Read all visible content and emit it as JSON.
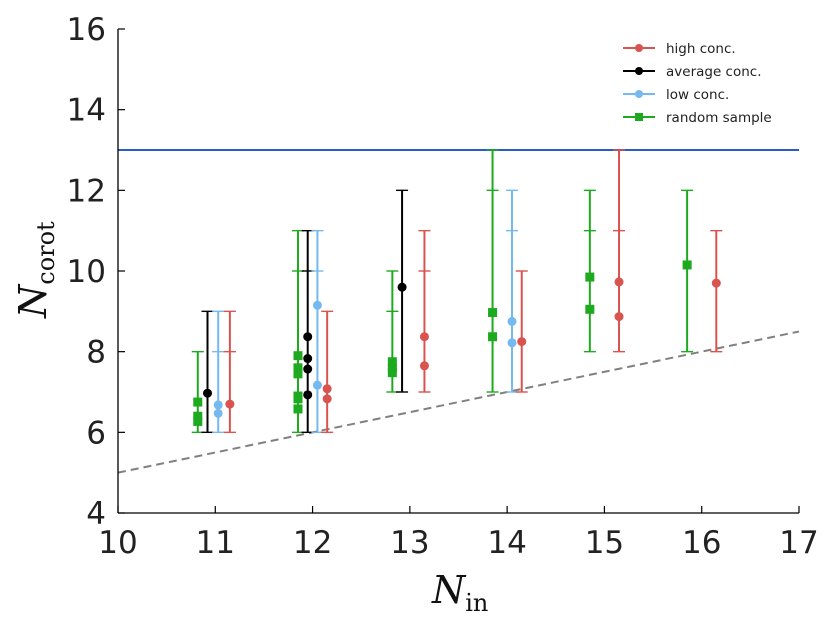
{
  "chart_data": {
    "type": "scatter",
    "title": "",
    "xlabel": {
      "main": "N",
      "sub": "in"
    },
    "ylabel": {
      "main": "N",
      "sub": "corot"
    },
    "xlim": [
      10,
      17
    ],
    "ylim": [
      4,
      16
    ],
    "xticks": [
      "10",
      "11",
      "12",
      "13",
      "14",
      "15",
      "16",
      "17"
    ],
    "yticks": [
      "4",
      "6",
      "8",
      "10",
      "12",
      "14",
      "16"
    ],
    "grid": false,
    "legend_position": "top-right",
    "colors": {
      "high": "#d9534f",
      "average": "#000000",
      "low": "#74b9f0",
      "random": "#1eaa1e",
      "hline": "#2a5cc8",
      "dashed": "#808080"
    },
    "reference_lines": [
      {
        "name": "upper-bound",
        "y": 13,
        "style": "solid",
        "color": "#2a5cc8"
      },
      {
        "name": "lower-bound",
        "x": [
          10,
          17
        ],
        "y": [
          5,
          8.5
        ],
        "style": "dashed",
        "color": "#808080"
      }
    ],
    "series": [
      {
        "name": "high conc.",
        "key": "high",
        "marker": "circle",
        "groups": [
          {
            "x": 11.15,
            "y_min": 6,
            "y_max": 9,
            "caps": [
              9,
              8,
              6
            ],
            "points": [
              6.7
            ]
          },
          {
            "x": 12.15,
            "y_min": 6,
            "y_max": 9,
            "caps": [
              9,
              6
            ],
            "points": [
              7.08,
              6.83
            ]
          },
          {
            "x": 13.15,
            "y_min": 7,
            "y_max": 11,
            "caps": [
              11,
              10,
              7
            ],
            "points": [
              8.37,
              7.65
            ]
          },
          {
            "x": 14.15,
            "y_min": 7,
            "y_max": 10,
            "caps": [
              10,
              7
            ],
            "points": [
              8.25
            ]
          },
          {
            "x": 15.15,
            "y_min": 8,
            "y_max": 13,
            "caps": [
              13,
              11,
              8
            ],
            "points": [
              9.73,
              8.87
            ]
          },
          {
            "x": 16.15,
            "y_min": 8,
            "y_max": 11,
            "caps": [
              11,
              8
            ],
            "points": [
              9.7
            ]
          }
        ]
      },
      {
        "name": "average conc.",
        "key": "average",
        "marker": "circle",
        "groups": [
          {
            "x": 10.92,
            "y_min": 6,
            "y_max": 9,
            "caps": [
              9,
              6
            ],
            "points": [
              6.97
            ]
          },
          {
            "x": 11.95,
            "y_min": 6,
            "y_max": 11,
            "caps": [
              11,
              10,
              6
            ],
            "points": [
              8.37,
              7.83,
              7.57,
              6.93
            ]
          },
          {
            "x": 12.92,
            "y_min": 7,
            "y_max": 12,
            "caps": [
              12,
              7
            ],
            "points": [
              9.6
            ]
          }
        ]
      },
      {
        "name": "low conc.",
        "key": "low",
        "marker": "circle",
        "groups": [
          {
            "x": 11.03,
            "y_min": 6,
            "y_max": 9,
            "caps": [
              9,
              8,
              6
            ],
            "points": [
              6.68,
              6.47
            ]
          },
          {
            "x": 12.05,
            "y_min": 6,
            "y_max": 11,
            "caps": [
              11,
              10,
              6
            ],
            "points": [
              9.15,
              7.17
            ]
          },
          {
            "x": 14.05,
            "y_min": 7,
            "y_max": 12,
            "caps": [
              12,
              11,
              7
            ],
            "points": [
              8.75,
              8.22
            ]
          }
        ]
      },
      {
        "name": "random sample",
        "key": "random",
        "marker": "square",
        "groups": [
          {
            "x": 10.82,
            "y_min": 6,
            "y_max": 8,
            "caps": [
              8,
              6
            ],
            "points": [
              6.75,
              6.4,
              6.27
            ]
          },
          {
            "x": 11.85,
            "y_min": 6,
            "y_max": 11,
            "caps": [
              11,
              10,
              6
            ],
            "points": [
              7.9,
              7.6,
              7.45,
              6.9,
              6.83,
              6.58
            ]
          },
          {
            "x": 12.82,
            "y_min": 7,
            "y_max": 10,
            "caps": [
              10,
              9,
              7
            ],
            "points": [
              7.75,
              7.6,
              7.48
            ]
          },
          {
            "x": 13.85,
            "y_min": 7,
            "y_max": 13,
            "caps": [
              13,
              12,
              7
            ],
            "points": [
              8.97,
              8.37
            ]
          },
          {
            "x": 14.85,
            "y_min": 8,
            "y_max": 12,
            "caps": [
              12,
              11,
              8
            ],
            "points": [
              9.85,
              9.05
            ]
          },
          {
            "x": 15.85,
            "y_min": 8,
            "y_max": 12,
            "caps": [
              12,
              8
            ],
            "points": [
              10.15
            ]
          }
        ]
      }
    ]
  }
}
